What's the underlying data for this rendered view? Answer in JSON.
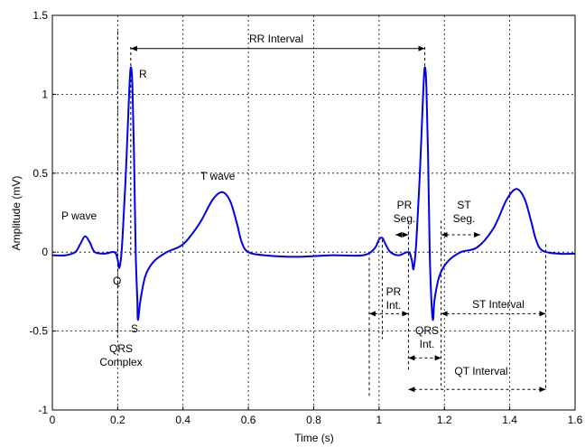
{
  "chart_data": {
    "type": "line",
    "title": "",
    "xlabel": "Time (s)",
    "ylabel": "Amplitude (mV)",
    "xlim": [
      0,
      1.6
    ],
    "ylim": [
      -1,
      1.5
    ],
    "grid": true,
    "x_ticks": [
      "0",
      "0.2",
      "0.4",
      "0.6",
      "0.8",
      "1",
      "1.2",
      "1.4",
      "1.6"
    ],
    "y_ticks": [
      "-1",
      "-0.5",
      "0",
      "0.5",
      "1",
      "1.5"
    ],
    "series": [
      {
        "color": "#0000ee",
        "points": [
          [
            0,
            -0.02
          ],
          [
            0.04,
            -0.02
          ],
          [
            0.07,
            0
          ],
          [
            0.085,
            0.05
          ],
          [
            0.1,
            0.1
          ],
          [
            0.115,
            0.06
          ],
          [
            0.13,
            0
          ],
          [
            0.16,
            -0.01
          ],
          [
            0.19,
            0
          ],
          [
            0.2,
            -0.05
          ],
          [
            0.205,
            -0.1
          ],
          [
            0.21,
            -0.04
          ],
          [
            0.215,
            0.1
          ],
          [
            0.225,
            0.5
          ],
          [
            0.235,
            1.0
          ],
          [
            0.24,
            1.17
          ],
          [
            0.245,
            1.05
          ],
          [
            0.25,
            0.6
          ],
          [
            0.255,
            0.0
          ],
          [
            0.26,
            -0.3
          ],
          [
            0.262,
            -0.43
          ],
          [
            0.27,
            -0.3
          ],
          [
            0.285,
            -0.15
          ],
          [
            0.31,
            -0.06
          ],
          [
            0.35,
            0.0
          ],
          [
            0.4,
            0.05
          ],
          [
            0.45,
            0.18
          ],
          [
            0.49,
            0.33
          ],
          [
            0.52,
            0.38
          ],
          [
            0.545,
            0.32
          ],
          [
            0.565,
            0.18
          ],
          [
            0.58,
            0.06
          ],
          [
            0.6,
            0.0
          ],
          [
            0.65,
            -0.02
          ],
          [
            0.75,
            -0.03
          ],
          [
            0.85,
            -0.02
          ],
          [
            0.95,
            -0.02
          ],
          [
            0.985,
            0.02
          ],
          [
            1.0,
            0.08
          ],
          [
            1.01,
            0.09
          ],
          [
            1.02,
            0.05
          ],
          [
            1.035,
            0.0
          ],
          [
            1.06,
            -0.02
          ],
          [
            1.09,
            0
          ],
          [
            1.1,
            -0.05
          ],
          [
            1.105,
            -0.11
          ],
          [
            1.11,
            -0.04
          ],
          [
            1.115,
            0.1
          ],
          [
            1.125,
            0.5
          ],
          [
            1.135,
            1.0
          ],
          [
            1.14,
            1.17
          ],
          [
            1.145,
            1.05
          ],
          [
            1.15,
            0.6
          ],
          [
            1.155,
            0.0
          ],
          [
            1.16,
            -0.3
          ],
          [
            1.165,
            -0.43
          ],
          [
            1.17,
            -0.3
          ],
          [
            1.185,
            -0.15
          ],
          [
            1.21,
            -0.06
          ],
          [
            1.25,
            0.0
          ],
          [
            1.3,
            0.03
          ],
          [
            1.35,
            0.15
          ],
          [
            1.39,
            0.33
          ],
          [
            1.42,
            0.4
          ],
          [
            1.445,
            0.34
          ],
          [
            1.465,
            0.2
          ],
          [
            1.48,
            0.08
          ],
          [
            1.5,
            0.01
          ],
          [
            1.55,
            -0.01
          ],
          [
            1.6,
            -0.01
          ]
        ]
      }
    ],
    "annotations": {
      "rr": "RR Interval",
      "p_wave": "P wave",
      "t_wave": "T wave",
      "r": "R",
      "q": "Q",
      "s": "S",
      "qrs_complex_1": "QRS",
      "qrs_complex_2": "Complex",
      "pr_seg_1": "PR",
      "pr_seg_2": "Seg.",
      "st_seg_1": "ST",
      "st_seg_2": "Seg.",
      "pr_int_1": "PR",
      "pr_int_2": "Int.",
      "qrs_int_1": "QRS",
      "qrs_int_2": "Int.",
      "st_interval": "ST Interval",
      "qt_interval": "QT Interval"
    }
  }
}
